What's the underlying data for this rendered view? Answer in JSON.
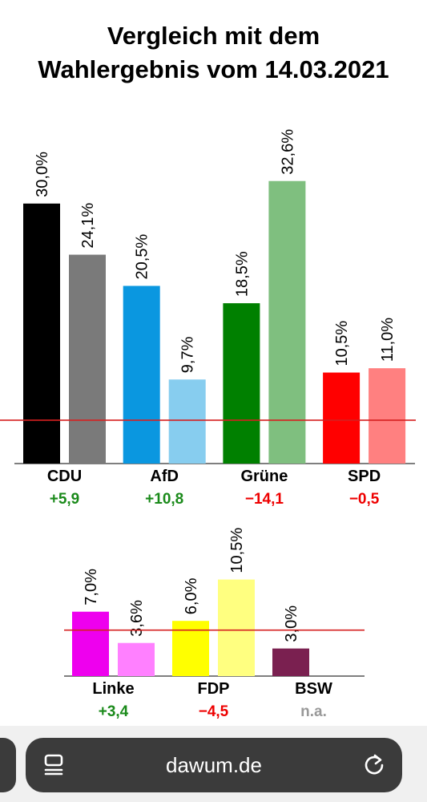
{
  "chart_data": [
    {
      "type": "bar",
      "title": "Vergleich mit dem Wahlergebnis vom 14.03.2021",
      "categories": [
        "CDU",
        "AfD",
        "Grüne",
        "SPD"
      ],
      "series": [
        {
          "values": [
            30.0,
            20.5,
            18.5,
            10.5
          ]
        },
        {
          "values": [
            24.1,
            9.7,
            32.6,
            11.0
          ]
        }
      ],
      "value_labels": [
        [
          "30,0%",
          "24,1%"
        ],
        [
          "20,5%",
          "9,7%"
        ],
        [
          "18,5%",
          "32,6%"
        ],
        [
          "10,5%",
          "11,0%"
        ]
      ],
      "differences": [
        "+5,9",
        "+10,8",
        "−14,1",
        "−0,5"
      ],
      "colors": [
        [
          "#000000",
          "#7a7a7a"
        ],
        [
          "#0a97e0",
          "#87cdef"
        ],
        [
          "#008000",
          "#7fbf7f"
        ],
        [
          "#ff0000",
          "#ff8080"
        ]
      ],
      "diff_colors": [
        "#1a8a1a",
        "#1a8a1a",
        "#ee0000",
        "#ee0000"
      ],
      "threshold": 5,
      "threshold_color": "#d62020",
      "ylim": [
        0,
        33.5
      ]
    },
    {
      "type": "bar",
      "categories": [
        "Linke",
        "FDP",
        "BSW"
      ],
      "series": [
        {
          "values": [
            7.0,
            6.0,
            3.0
          ]
        },
        {
          "values": [
            3.6,
            10.5,
            null
          ]
        }
      ],
      "value_labels": [
        [
          "7,0%",
          "3,6%"
        ],
        [
          "6,0%",
          "10,5%"
        ],
        [
          "3,0%",
          null
        ]
      ],
      "differences": [
        "+3,4",
        "−4,5",
        "n.a."
      ],
      "colors": [
        [
          "#ee00ee",
          "#ff80ff"
        ],
        [
          "#ffff00",
          "#ffff80"
        ],
        [
          "#7a2050",
          null
        ]
      ],
      "diff_colors": [
        "#1a8a1a",
        "#ee0000",
        "#999999"
      ],
      "threshold": 5,
      "threshold_color": "#d62020",
      "ylim": [
        0,
        10.9
      ]
    }
  ],
  "browser": {
    "url": "dawum.de",
    "tabs_icon": "tabs-overview-icon",
    "reload_icon": "reload-icon"
  }
}
